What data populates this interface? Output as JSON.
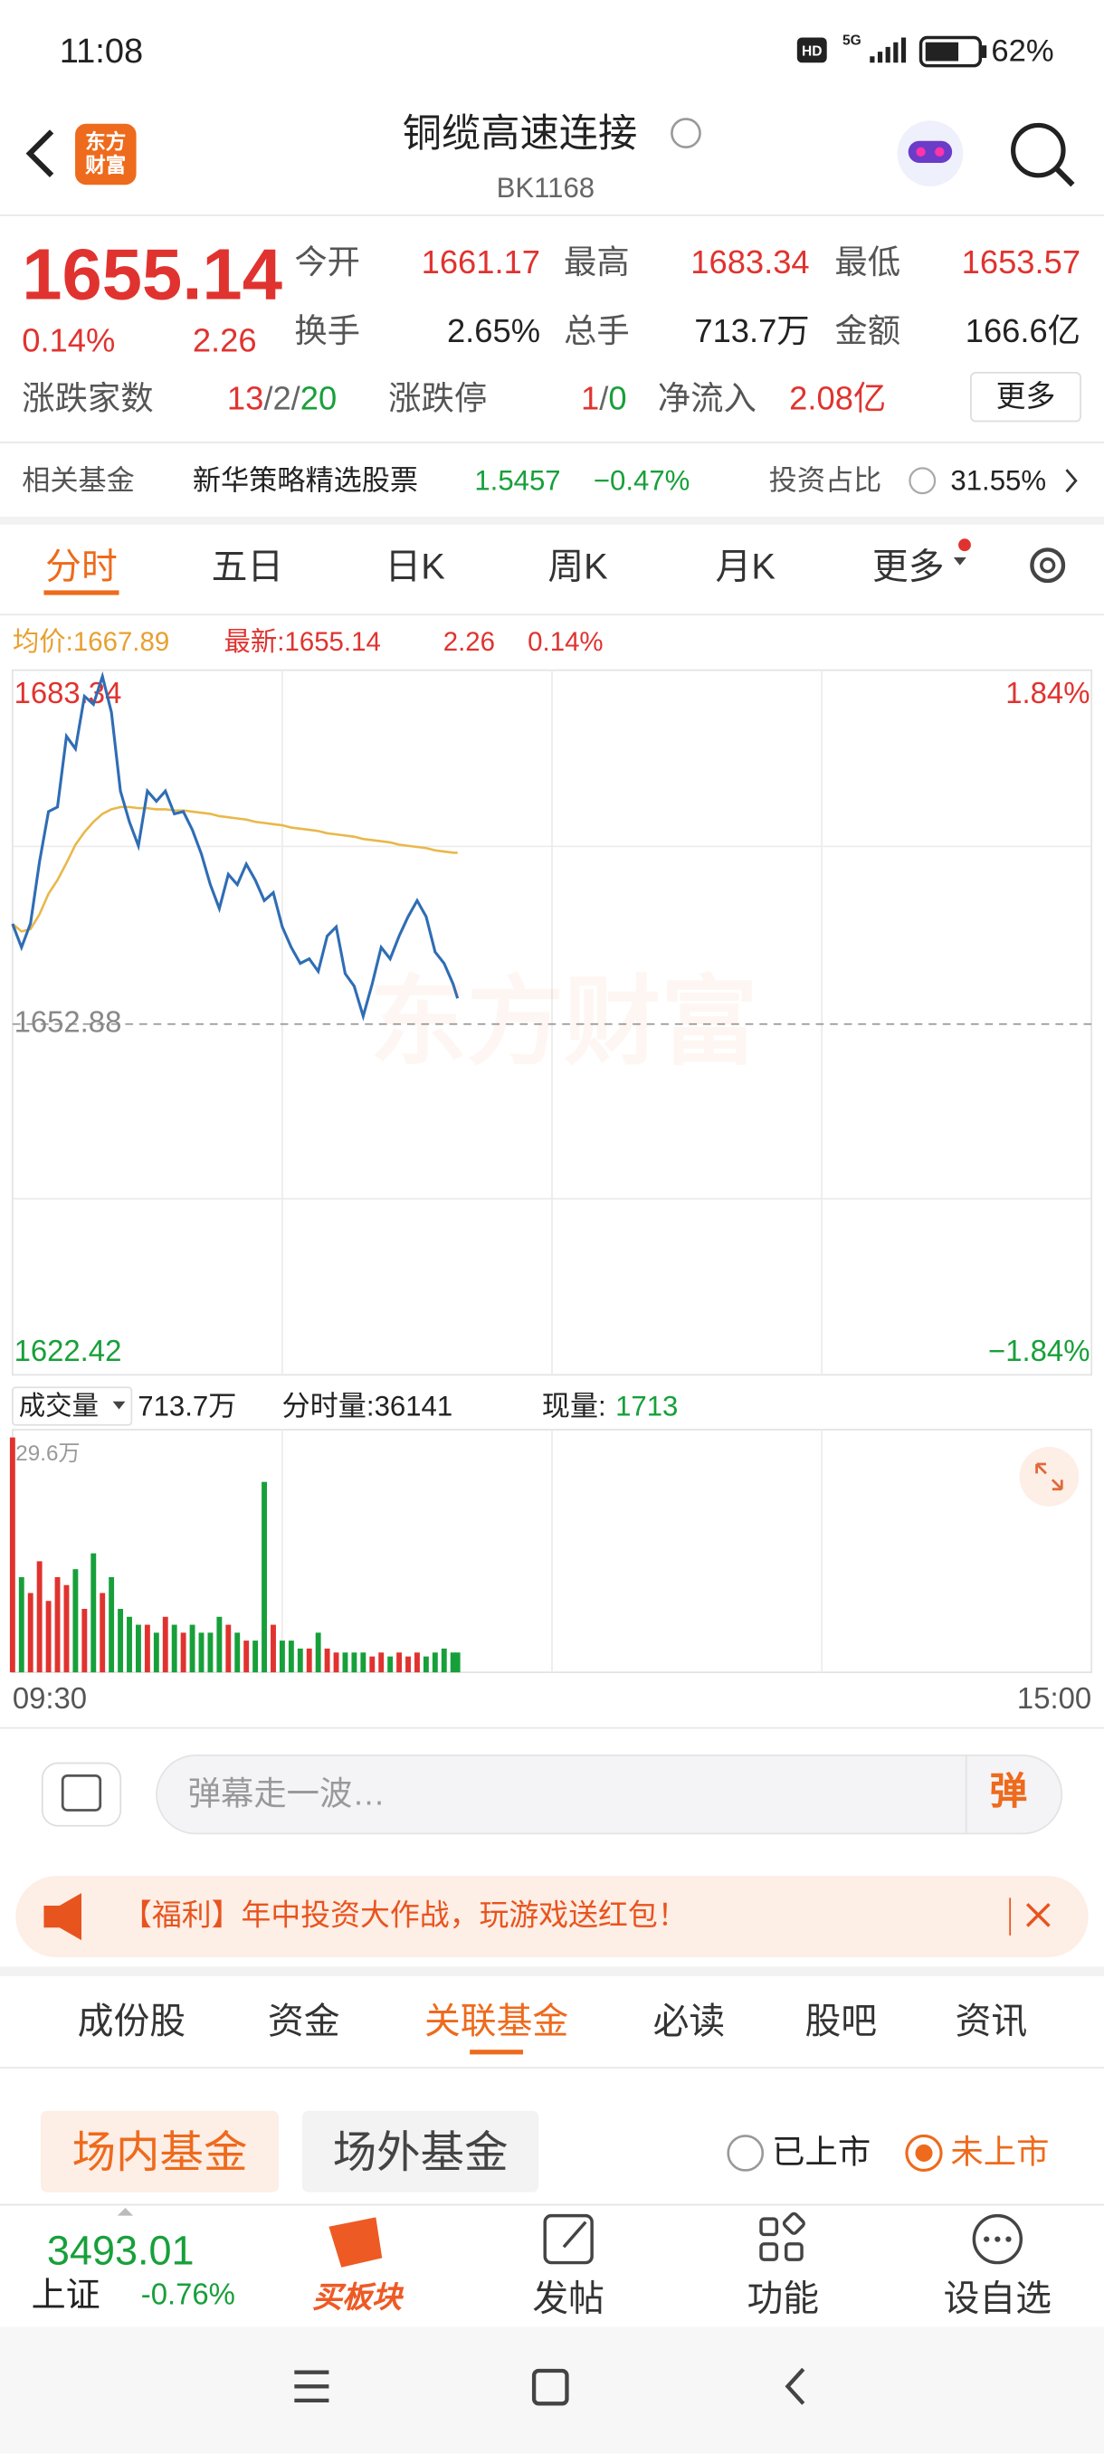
{
  "status_bar": {
    "time": "11:08",
    "hd": "HD",
    "network": "5G",
    "battery": "62%"
  },
  "header": {
    "title": "铜缆高速连接",
    "code": "BK1168",
    "logo": "东方财富"
  },
  "quote": {
    "price": "1655.14",
    "change_pct": "0.14%",
    "change": "2.26",
    "fields": [
      {
        "label": "今开",
        "value": "1661.17"
      },
      {
        "label": "最高",
        "value": "1683.34"
      },
      {
        "label": "最低",
        "value": "1653.57"
      },
      {
        "label": "换手",
        "value": "2.65%"
      },
      {
        "label": "总手",
        "value": "713.7万"
      },
      {
        "label": "金额",
        "value": "166.6亿"
      }
    ],
    "breadth": {
      "label": "涨跌家数",
      "value": "13/2/20"
    },
    "limit": {
      "label": "涨跌停",
      "value": "1/0"
    },
    "net_inflow": {
      "label": "净流入",
      "value": "2.08亿"
    },
    "more": "更多"
  },
  "fund": {
    "label": "相关基金",
    "name": "新华策略精选股票",
    "nav": "1.5457",
    "change": "−0.47%",
    "ratio_label": "投资占比",
    "ratio": "31.55%"
  },
  "tabs": [
    "分时",
    "五日",
    "日K",
    "周K",
    "月K",
    "更多"
  ],
  "info": {
    "avg": "均价:1667.89",
    "latest": "最新:1655.14",
    "change": "2.26",
    "change_pct": "0.14%"
  },
  "watermark": "东方财富",
  "volume_info": {
    "label": "成交量",
    "total": "713.7万",
    "tick_label": "分时量:36141",
    "now_label": "现量:",
    "now": "1713"
  },
  "chart_data": [
    {
      "type": "line",
      "x": [
        0,
        2,
        4,
        6,
        8,
        10,
        12,
        14,
        16,
        18,
        20,
        22,
        24,
        26,
        28,
        30,
        32,
        34,
        36,
        38,
        40,
        42,
        44,
        46,
        48,
        50,
        52,
        54,
        56,
        58,
        60,
        62,
        64,
        66,
        68,
        70,
        72,
        74,
        76,
        78,
        80,
        82,
        84,
        86,
        88,
        90,
        92,
        94,
        96,
        98,
        99
      ],
      "xlim": [
        0,
        240
      ],
      "ylim": [
        1622.42,
        1683.34
      ],
      "yticks": [
        1683.34,
        1652.88,
        1622.42
      ],
      "y2lim": [
        -1.84,
        1.84
      ],
      "y2ticks": [
        {
          "value": 1.84,
          "label": "1.84%"
        },
        {
          "value": -1.84,
          "label": "−1.84%"
        }
      ],
      "series": [
        {
          "color": "#2f6db5",
          "values": [
            1661.66,
            1659.6,
            1661.7,
            1667.1,
            1671.5,
            1671.9,
            1678.1,
            1677.0,
            1681.6,
            1680.9,
            1683.34,
            1680.2,
            1673.3,
            1670.6,
            1668.5,
            1673.3,
            1672.4,
            1673.3,
            1671.3,
            1671.5,
            1669.9,
            1667.8,
            1665.1,
            1663.0,
            1666.0,
            1665.1,
            1666.9,
            1665.5,
            1663.7,
            1664.4,
            1661.4,
            1659.6,
            1658.2,
            1658.6,
            1657.5,
            1660.6,
            1661.4,
            1657.3,
            1656.2,
            1653.57,
            1656.4,
            1659.6,
            1658.6,
            1660.6,
            1662.3,
            1663.7,
            1662.3,
            1659.2,
            1658.2,
            1656.4,
            1655.14
          ]
        },
        {
          "color": "#e8b84a",
          "values": [
            1661.66,
            1661.0,
            1661.2,
            1662.5,
            1664.3,
            1665.5,
            1667.0,
            1668.6,
            1669.7,
            1670.6,
            1671.3,
            1671.7,
            1671.9,
            1671.9,
            1671.8,
            1671.8,
            1671.7,
            1671.7,
            1671.6,
            1671.6,
            1671.5,
            1671.4,
            1671.3,
            1671.1,
            1671.0,
            1670.9,
            1670.8,
            1670.6,
            1670.5,
            1670.4,
            1670.3,
            1670.1,
            1670.0,
            1669.9,
            1669.8,
            1669.6,
            1669.5,
            1669.4,
            1669.3,
            1669.1,
            1669.0,
            1668.9,
            1668.8,
            1668.6,
            1668.5,
            1668.4,
            1668.3,
            1668.1,
            1668.0,
            1667.9,
            1667.89
          ]
        }
      ]
    },
    {
      "type": "bar",
      "x": [
        0,
        2,
        4,
        6,
        8,
        10,
        12,
        14,
        16,
        18,
        20,
        22,
        24,
        26,
        28,
        30,
        32,
        34,
        36,
        38,
        40,
        42,
        44,
        46,
        48,
        50,
        52,
        54,
        56,
        58,
        60,
        62,
        64,
        66,
        68,
        70,
        72,
        74,
        76,
        78,
        80,
        82,
        84,
        86,
        88,
        90,
        92,
        94,
        96,
        98,
        99
      ],
      "xlim": [
        0,
        240
      ],
      "xticks": [
        {
          "value": 0,
          "label": "09:30"
        },
        {
          "value": 240,
          "label": "15:00"
        }
      ],
      "ylim": [
        0,
        29.6
      ],
      "yticks": [
        {
          "value": 29.6,
          "label": "29.6万"
        }
      ],
      "up_color": "#e0332f",
      "down_color": "#17a03a",
      "values": [
        29.6,
        12,
        10,
        14,
        9,
        12,
        11,
        13,
        8,
        15,
        10,
        12,
        8,
        7,
        6,
        6,
        5,
        7,
        6,
        5,
        6,
        5,
        5,
        7,
        6,
        5,
        4,
        4,
        24,
        6,
        4,
        4,
        3,
        3,
        5,
        3,
        2.5,
        2.5,
        2.5,
        2.5,
        2,
        2.5,
        2,
        2.5,
        2,
        2.5,
        2,
        2.5,
        3,
        2.5,
        2.5
      ]
    }
  ],
  "danmaku": {
    "placeholder": "弹幕走一波…",
    "button": "弹"
  },
  "banner": "【福利】年中投资大作战，玩游戏送红包！",
  "section_tabs": [
    "成份股",
    "资金",
    "关联基金",
    "必读",
    "股吧",
    "资讯"
  ],
  "fund_tabs": {
    "onsite": "场内基金",
    "offsite": "场外基金",
    "listed": "已上市",
    "unlisted": "未上市"
  },
  "bottom_nav": {
    "index_value": "3493.01",
    "index_name": "上证",
    "index_change": "-0.76%",
    "items": [
      "买板块",
      "发帖",
      "功能",
      "设自选"
    ]
  }
}
